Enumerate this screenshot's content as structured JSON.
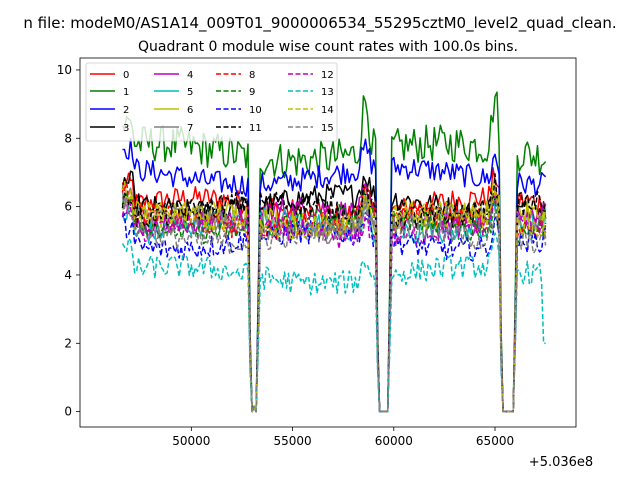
{
  "chart_data": {
    "type": "line",
    "suptitle": "n file: modeM0/AS1A14_009T01_9000006534_55295cztM0_level2_quad_clean.",
    "title": "Quadrant 0 module wise count rates with 100.0s bins.",
    "xlabel": "",
    "ylabel": "",
    "x_offset_label": "+5.036e8",
    "xlim": [
      44500,
      69000
    ],
    "ylim": [
      -0.45,
      10.35
    ],
    "xticks": [
      50000,
      55000,
      60000,
      65000
    ],
    "xtick_labels": [
      "50000",
      "55000",
      "60000",
      "65000"
    ],
    "yticks": [
      0,
      2,
      4,
      6,
      8,
      10
    ],
    "ytick_labels": [
      "0",
      "2",
      "4",
      "6",
      "8",
      "10"
    ],
    "grid": false,
    "legend_position": "top-left",
    "bin_seconds": 100,
    "x_start": 46600,
    "x_end": 67500,
    "gaps": [
      [
        53000,
        53200
      ],
      [
        59300,
        59700
      ],
      [
        65400,
        65900
      ]
    ],
    "series": [
      {
        "name": "0",
        "color": "#ff0000",
        "style": "solid",
        "base": 6.0
      },
      {
        "name": "1",
        "color": "#008000",
        "style": "solid",
        "base": 7.6
      },
      {
        "name": "2",
        "color": "#0000ff",
        "style": "solid",
        "base": 6.9
      },
      {
        "name": "3",
        "color": "#000000",
        "style": "solid",
        "base": 6.1
      },
      {
        "name": "4",
        "color": "#bf00bf",
        "style": "solid",
        "base": 5.7
      },
      {
        "name": "5",
        "color": "#00bfbf",
        "style": "solid",
        "base": 5.4
      },
      {
        "name": "6",
        "color": "#bfbf00",
        "style": "solid",
        "base": 5.6
      },
      {
        "name": "7",
        "color": "#808080",
        "style": "solid",
        "base": 5.5
      },
      {
        "name": "8",
        "color": "#ff0000",
        "style": "dashed",
        "base": 5.6
      },
      {
        "name": "9",
        "color": "#008000",
        "style": "dashed",
        "base": 5.5
      },
      {
        "name": "10",
        "color": "#0000ff",
        "style": "dashed",
        "base": 5.0
      },
      {
        "name": "11",
        "color": "#000000",
        "style": "dashed",
        "base": 5.9
      },
      {
        "name": "12",
        "color": "#bf00bf",
        "style": "dashed",
        "base": 5.3
      },
      {
        "name": "13",
        "color": "#00bfbf",
        "style": "dashed",
        "base": 4.0
      },
      {
        "name": "14",
        "color": "#bfbf00",
        "style": "dashed",
        "base": 5.6
      },
      {
        "name": "15",
        "color": "#808080",
        "style": "dashed",
        "base": 5.2
      }
    ]
  }
}
